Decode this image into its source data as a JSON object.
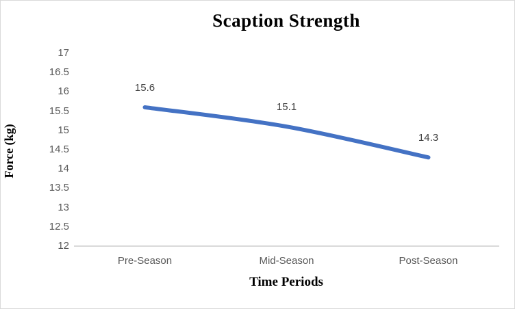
{
  "frame": {
    "background": "#ffffff",
    "border_color": "#D9D9D9"
  },
  "chart_data": {
    "type": "line",
    "title": "Scaption Strength",
    "xlabel": "Time Periods",
    "ylabel": "Force (kg)",
    "categories": [
      "Pre-Season",
      "Mid-Season",
      "Post-Season"
    ],
    "series": [
      {
        "name": "Scaption Strength",
        "values": [
          15.6,
          15.1,
          14.3
        ]
      }
    ],
    "data_labels": [
      "15.6",
      "15.1",
      "14.3"
    ],
    "ylim": [
      12,
      17
    ],
    "ytick_step": 0.5,
    "ytick_labels": [
      "12",
      "12.5",
      "13",
      "13.5",
      "14",
      "14.5",
      "15",
      "15.5",
      "16",
      "16.5",
      "17"
    ],
    "grid": false,
    "legend": "none",
    "smooth": true,
    "colors": {
      "line": "#4472C4",
      "axis_line": "#D9D9D9",
      "tick_text": "#595959",
      "category_text": "#595959",
      "data_label_text": "#404040",
      "title_text": "#000000"
    }
  }
}
